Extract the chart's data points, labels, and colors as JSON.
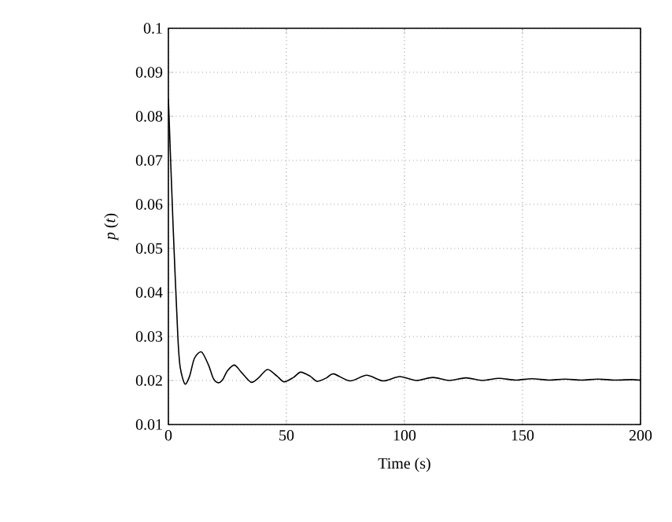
{
  "chart_data": {
    "type": "line",
    "xlabel": "Time (s)",
    "ylabel": "*p* (*t*)",
    "x": [
      0,
      2,
      4,
      5,
      7,
      9,
      11,
      14,
      17,
      19,
      21,
      23,
      25,
      28,
      31,
      35,
      38,
      42,
      46,
      49,
      53,
      56,
      60,
      63,
      67,
      70,
      77,
      84,
      91,
      98,
      105,
      112,
      119,
      126,
      133,
      140,
      147,
      154,
      161,
      168,
      175,
      182,
      189,
      196,
      200
    ],
    "series": [
      {
        "color": "#000000",
        "values": [
          0.084,
          0.055,
          0.03,
          0.023,
          0.0192,
          0.021,
          0.025,
          0.0265,
          0.0235,
          0.0205,
          0.0195,
          0.0202,
          0.0222,
          0.0235,
          0.0218,
          0.0196,
          0.0205,
          0.0225,
          0.021,
          0.0197,
          0.0207,
          0.0219,
          0.021,
          0.0198,
          0.0206,
          0.0215,
          0.0199,
          0.0212,
          0.0199,
          0.0209,
          0.02,
          0.0207,
          0.02,
          0.0206,
          0.02,
          0.0205,
          0.0201,
          0.0204,
          0.0201,
          0.0203,
          0.0201,
          0.0203,
          0.0201,
          0.0202,
          0.0201
        ]
      }
    ],
    "xlim": [
      0,
      200
    ],
    "xticks": [
      0,
      50,
      100,
      150,
      200
    ],
    "ylim": [
      0.01,
      0.1
    ],
    "yticks": [
      0.01,
      0.02,
      0.03,
      0.04,
      0.05,
      0.06,
      0.07,
      0.08,
      0.09,
      0.1
    ],
    "grid": true
  }
}
